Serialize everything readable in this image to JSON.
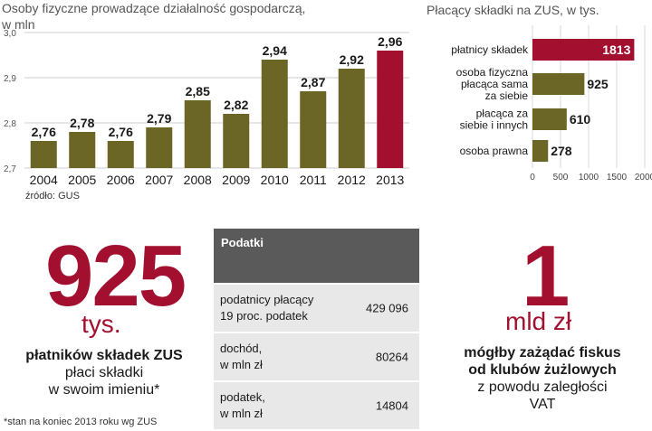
{
  "chart_data": [
    {
      "type": "bar",
      "title": "Osoby fizyczne prowadzące działalność gospodarczą,",
      "subtitle": "w mln",
      "categories": [
        "2004",
        "2005",
        "2006",
        "2007",
        "2008",
        "2009",
        "2010",
        "2011",
        "2012",
        "2013"
      ],
      "values": [
        2.76,
        2.78,
        2.76,
        2.79,
        2.85,
        2.82,
        2.94,
        2.87,
        2.92,
        2.96
      ],
      "value_labels": [
        "2,76",
        "2,78",
        "2,76",
        "2,79",
        "2,85",
        "2,82",
        "2,94",
        "2,87",
        "2,92",
        "2,96"
      ],
      "ylim": [
        2.7,
        3.0
      ],
      "yticks": [
        "2,7",
        "2,8",
        "2,9",
        "3,0"
      ],
      "grid": true,
      "colors": {
        "default": "#6b6526",
        "highlight": "#a3102f"
      },
      "highlight_index": 9,
      "source": "źródło: GUS"
    },
    {
      "type": "bar",
      "orientation": "horizontal",
      "title": "Płacący składki na ZUS, w tys.",
      "categories": [
        [
          "płatnicy składek"
        ],
        [
          "osoba fizyczna",
          "płacąca sama",
          "za siebie"
        ],
        [
          "płacąca za",
          "siebie i innych"
        ],
        [
          "osoba prawna"
        ]
      ],
      "values": [
        1813,
        925,
        610,
        278
      ],
      "value_labels": [
        "1813",
        "925",
        "610",
        "278"
      ],
      "xlim": [
        0,
        2000
      ],
      "xticks": [
        "0",
        "500",
        "1000",
        "1500",
        "2000"
      ],
      "grid": true,
      "colors": {
        "default": "#6b6526",
        "highlight": "#a3102f"
      },
      "highlight_index": 0
    }
  ],
  "left_stat": {
    "number": "925",
    "unit": "tys.",
    "bold_line": "płatników składek ZUS",
    "lines": [
      "płaci składki",
      "w swoim imieniu*"
    ],
    "footnote": "*stan na koniec 2013 roku wg ZUS"
  },
  "tax_table": {
    "header": "Podatki",
    "rows": [
      {
        "label": [
          "podatnicy płacący",
          "19 proc. podatek"
        ],
        "value": "429 096"
      },
      {
        "label": [
          "dochód,",
          "w mln zł"
        ],
        "value": "80264"
      },
      {
        "label": [
          "podatek,",
          "w mln zł"
        ],
        "value": "14804"
      }
    ]
  },
  "right_stat": {
    "number": "1",
    "unit": "mld zł",
    "bold_lines": [
      "mógłby zażądać fiskus",
      "od klubów żużlowych"
    ],
    "lines": [
      "z powodu zaległości",
      "VAT"
    ]
  }
}
